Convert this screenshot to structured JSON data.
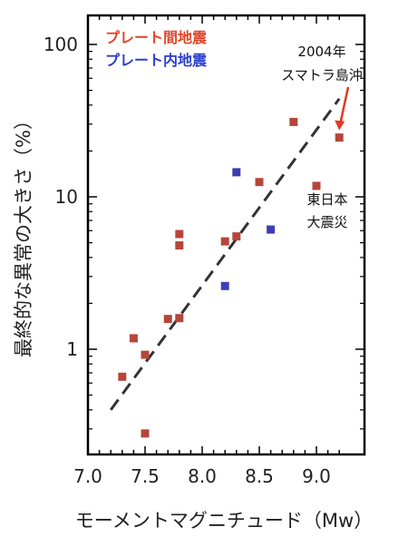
{
  "chart_data": {
    "type": "scatter",
    "xlabel": "モーメントマグニチュード（Mw）",
    "ylabel": "最終的な異常の大きさ（%）",
    "xlim": [
      7.0,
      9.2
    ],
    "ylim": [
      0.2,
      200
    ],
    "yscale": "log",
    "x_ticks": [
      "7.0",
      "7.5",
      "8.0",
      "8.5",
      "9.0"
    ],
    "y_ticks": [
      "1",
      "10",
      "100"
    ],
    "grid": false,
    "legend_position": "top-left",
    "series": [
      {
        "name": "プレート間地震",
        "color": "#b5473a",
        "points": [
          {
            "x": 7.3,
            "y": 0.66
          },
          {
            "x": 7.4,
            "y": 1.18
          },
          {
            "x": 7.5,
            "y": 0.92
          },
          {
            "x": 7.5,
            "y": 0.28
          },
          {
            "x": 7.7,
            "y": 1.58
          },
          {
            "x": 7.8,
            "y": 1.6
          },
          {
            "x": 7.8,
            "y": 4.8
          },
          {
            "x": 7.8,
            "y": 5.7
          },
          {
            "x": 8.2,
            "y": 5.1
          },
          {
            "x": 8.3,
            "y": 5.5
          },
          {
            "x": 8.5,
            "y": 12.5
          },
          {
            "x": 8.8,
            "y": 31
          },
          {
            "x": 9.0,
            "y": 11.8
          },
          {
            "x": 9.2,
            "y": 24.5
          }
        ]
      },
      {
        "name": "プレート内地震",
        "color": "#3b3fb5",
        "points": [
          {
            "x": 8.2,
            "y": 2.6
          },
          {
            "x": 8.3,
            "y": 14.5
          },
          {
            "x": 8.6,
            "y": 6.1
          }
        ]
      }
    ],
    "fit_line": {
      "x": [
        7.2,
        9.2
      ],
      "y": [
        0.4,
        44
      ],
      "style": "dashed"
    },
    "annotations": [
      {
        "lines": [
          "2004年",
          "スマトラ島沖"
        ],
        "points_to": {
          "x": 9.2,
          "y": 24.5
        },
        "arrow_color": "#e03a22"
      },
      {
        "lines": [
          "東日本",
          "大震災"
        ],
        "points_to": {
          "x": 9.0,
          "y": 11.8
        }
      }
    ],
    "legend_colors": [
      "#e0462a",
      "#2a3fd0"
    ]
  }
}
